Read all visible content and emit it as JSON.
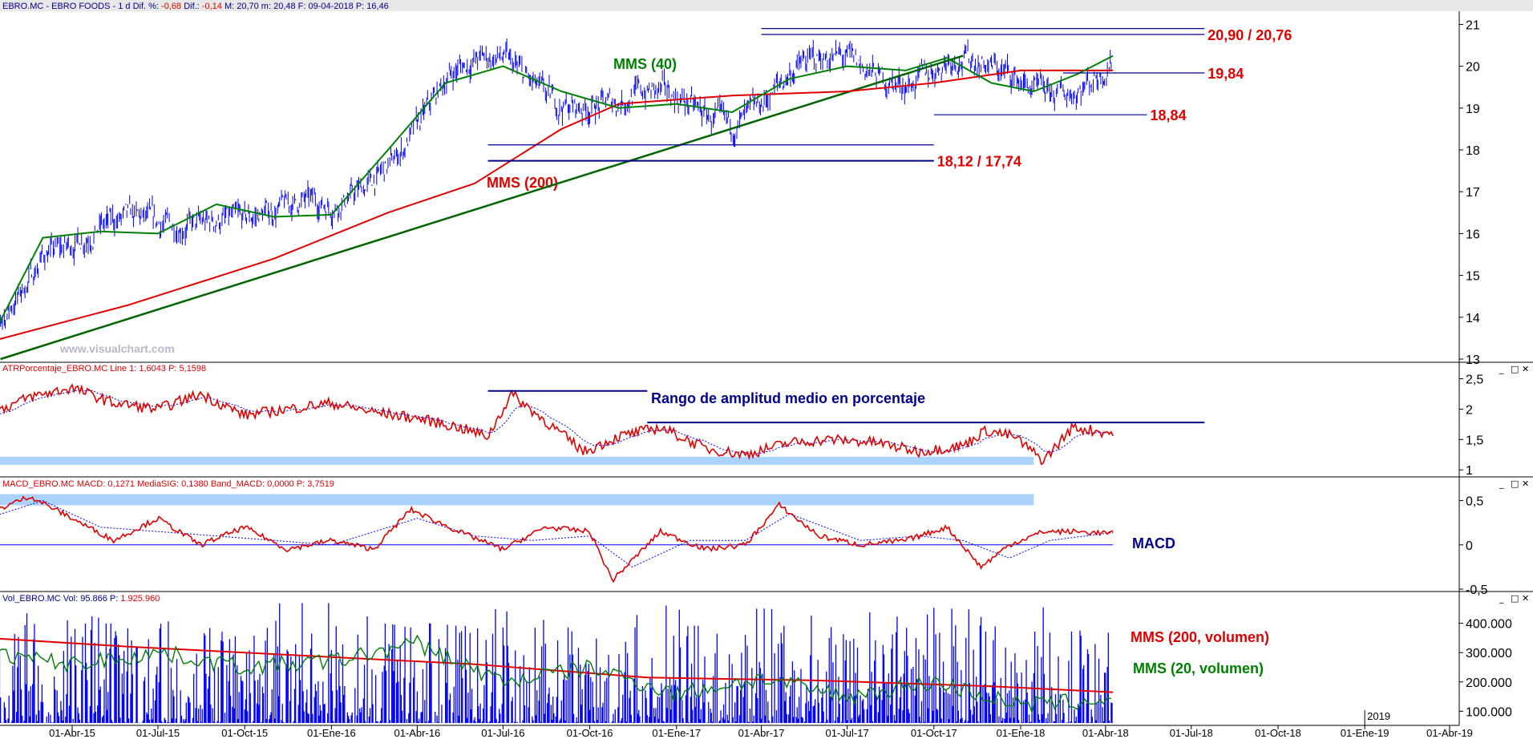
{
  "chart_data": [
    {
      "type": "line",
      "panel": "price",
      "header": {
        "prefix": "EBRO.MC - EBRO FOODS - 1 d  Dif. %:",
        "dif_pct": "-0,68",
        "dif_label": "Dif.:",
        "dif": "-0,14",
        "rest": "M: 20,70  m: 20,48  F: 09-04-2018  P: 16,46"
      },
      "watermark": "www.visualchart.com",
      "ylim": [
        13,
        21.2
      ],
      "y_ticks": [
        "21",
        "20",
        "19",
        "18",
        "17",
        "16",
        "15",
        "14",
        "13"
      ],
      "y_tick_values": [
        21,
        20,
        19,
        18,
        17,
        16,
        15,
        14,
        13
      ],
      "series": [
        {
          "name": "MMS (40)",
          "color": "#008000",
          "x": [
            "2015-01-01",
            "2015-03-01",
            "2015-05-01",
            "2015-07-01",
            "2015-09-01",
            "2015-11-01",
            "2016-01-01",
            "2016-03-01",
            "2016-05-01",
            "2016-07-01",
            "2016-09-01",
            "2016-11-01",
            "2017-01-01",
            "2017-03-01",
            "2017-05-01",
            "2017-07-01",
            "2017-09-01",
            "2017-10-15",
            "2017-12-01",
            "2018-01-15",
            "2018-03-01",
            "2018-04-09"
          ],
          "values": [
            13.3,
            15.9,
            16.05,
            16.0,
            16.7,
            16.4,
            16.45,
            18.0,
            19.6,
            20.0,
            19.4,
            19.0,
            19.1,
            18.9,
            19.7,
            20.0,
            19.9,
            20.2,
            19.6,
            19.4,
            19.8,
            20.25
          ]
        },
        {
          "name": "MMS (200)",
          "color": "#e00000",
          "x": [
            "2015-01-01",
            "2015-06-01",
            "2015-11-01",
            "2016-03-01",
            "2016-06-01",
            "2016-09-01",
            "2016-11-01",
            "2017-03-01",
            "2017-07-01",
            "2017-10-01",
            "2018-01-01",
            "2018-04-09"
          ],
          "values": [
            13.4,
            14.3,
            15.4,
            16.5,
            17.2,
            18.5,
            19.1,
            19.3,
            19.4,
            19.6,
            19.9,
            19.9
          ]
        },
        {
          "name": "",
          "role": "trendline",
          "color": "#006400",
          "x": [
            "2015-01-15",
            "2017-11-01"
          ],
          "values": [
            13.0,
            20.25
          ]
        }
      ],
      "levels": [
        {
          "label": "20,90 / 20,76",
          "values": [
            20.9,
            20.76
          ],
          "from": "2017-04-01",
          "to": "2018-07-15",
          "color": "#00008b"
        },
        {
          "label": "19,84",
          "values": [
            19.84
          ],
          "from": "2018-02-15",
          "to": "2018-07-15",
          "color": "#00008b"
        },
        {
          "label": "18,84",
          "values": [
            18.84
          ],
          "from": "2017-10-01",
          "to": "2018-05-15",
          "color": "#00008b"
        },
        {
          "label": "18,12 / 17,74",
          "values": [
            18.12,
            17.74
          ],
          "from": "2016-06-15",
          "to": "2017-10-01",
          "color": "#00008b"
        }
      ],
      "annotations": [
        {
          "text": "MMS (40)",
          "color": "#008000"
        },
        {
          "text": "MMS (200)",
          "color": "#e00000"
        }
      ]
    },
    {
      "type": "line",
      "panel": "atr",
      "header": {
        "label": "ATRPorcentaje_EBRO.MC  Line 1: 1,6043  P: 5,1598"
      },
      "title": "Rango de amplitud medio en porcentaje",
      "ylim": [
        0.95,
        2.6
      ],
      "y_ticks": [
        "2,5",
        "2",
        "1,5",
        "1"
      ],
      "y_tick_values": [
        2.5,
        2,
        1.5,
        1
      ],
      "series": [
        {
          "name": "Line 1",
          "color": "#e00000",
          "x": [
            "2015-01-01",
            "2015-02-15",
            "2015-04-01",
            "2015-05-15",
            "2015-07-01",
            "2015-08-15",
            "2015-10-01",
            "2015-11-15",
            "2016-01-01",
            "2016-02-15",
            "2016-04-01",
            "2016-05-15",
            "2016-06-15",
            "2016-07-10",
            "2016-08-15",
            "2016-09-25",
            "2016-11-01",
            "2016-12-15",
            "2017-02-01",
            "2017-03-15",
            "2017-05-01",
            "2017-06-15",
            "2017-08-01",
            "2017-09-15",
            "2017-11-01",
            "2017-11-25",
            "2017-12-25",
            "2018-01-25",
            "2018-02-25",
            "2018-04-09"
          ],
          "values": [
            1.9,
            2.2,
            2.35,
            2.1,
            2.0,
            2.25,
            1.9,
            2.0,
            2.1,
            1.95,
            1.85,
            1.7,
            1.55,
            2.25,
            1.8,
            1.3,
            1.55,
            1.7,
            1.35,
            1.25,
            1.45,
            1.5,
            1.45,
            1.3,
            1.4,
            1.65,
            1.55,
            1.15,
            1.7,
            1.6
          ]
        }
      ],
      "levels": [
        {
          "values": [
            2.3
          ],
          "from": "2016-06-15",
          "to": "2016-12-01",
          "color": "#00008b"
        },
        {
          "values": [
            1.78
          ],
          "from": "2016-12-01",
          "to": "2018-07-15",
          "color": "#00008b"
        }
      ],
      "highlight_band": {
        "from": "2015-01-01",
        "to": "2018-01-15",
        "value": 1.15,
        "color": "#aad4ff"
      }
    },
    {
      "type": "line",
      "panel": "macd",
      "header": {
        "label": "MACD_EBRO.MC  MACD: 0,1271  MediaSIG: 0,1380  Band_MACD: 0,0000  P: 3,7519"
      },
      "title": "MACD",
      "ylim": [
        -0.5,
        0.65
      ],
      "y_ticks": [
        "0,5",
        "0",
        "-0,5"
      ],
      "y_tick_values": [
        0.5,
        0,
        -0.5
      ],
      "series": [
        {
          "name": "MACD",
          "color": "#e00000",
          "x": [
            "2015-01-01",
            "2015-02-15",
            "2015-04-01",
            "2015-05-15",
            "2015-07-01",
            "2015-08-15",
            "2015-10-01",
            "2015-11-15",
            "2016-01-01",
            "2016-02-15",
            "2016-03-25",
            "2016-05-15",
            "2016-07-01",
            "2016-08-15",
            "2016-10-01",
            "2016-10-25",
            "2016-12-15",
            "2017-02-01",
            "2017-03-15",
            "2017-04-20",
            "2017-06-01",
            "2017-07-15",
            "2017-09-01",
            "2017-10-15",
            "2017-11-20",
            "2017-12-20",
            "2018-01-25",
            "2018-02-25",
            "2018-04-09"
          ],
          "values": [
            0.35,
            0.55,
            0.3,
            0.05,
            0.3,
            0.0,
            0.2,
            -0.05,
            0.05,
            -0.05,
            0.4,
            0.15,
            -0.05,
            0.2,
            0.15,
            -0.4,
            0.15,
            -0.05,
            0.0,
            0.45,
            0.1,
            0.0,
            0.05,
            0.2,
            -0.25,
            0.0,
            0.15,
            0.15,
            0.13
          ]
        },
        {
          "name": "MediaSIG",
          "color": "#0000ff",
          "x": [
            "2015-01-01",
            "2015-03-01",
            "2015-05-01",
            "2015-07-01",
            "2015-09-01",
            "2015-11-01",
            "2016-01-01",
            "2016-04-01",
            "2016-06-01",
            "2016-08-01",
            "2016-10-01",
            "2016-11-15",
            "2017-01-15",
            "2017-03-15",
            "2017-05-01",
            "2017-07-15",
            "2017-09-15",
            "2017-11-01",
            "2017-12-20",
            "2018-02-01",
            "2018-04-09"
          ],
          "values": [
            0.3,
            0.5,
            0.2,
            0.15,
            0.1,
            0.05,
            0.0,
            0.3,
            0.1,
            0.05,
            0.1,
            -0.25,
            0.05,
            0.05,
            0.35,
            0.05,
            0.1,
            0.05,
            -0.15,
            0.05,
            0.14
          ]
        }
      ],
      "baseline": 0,
      "highlight_band": {
        "from": "2015-01-01",
        "to": "2018-01-15",
        "value": 0.51,
        "color": "#aad4ff"
      }
    },
    {
      "type": "bar",
      "panel": "volume",
      "header": {
        "prefix": "Vol_EBRO.MC  Vol: 95.866  P:",
        "p_value": "1.925.960"
      },
      "ylim": [
        60000,
        470000
      ],
      "y_ticks": [
        "400.000",
        "300.000",
        "200.000",
        "100.000"
      ],
      "y_tick_values": [
        400000,
        300000,
        200000,
        100000
      ],
      "series": [
        {
          "name": "MMS (200, volumen)",
          "color": "#e00000",
          "x": [
            "2015-01-01",
            "2015-06-01",
            "2015-12-01",
            "2016-06-01",
            "2016-12-01",
            "2017-06-01",
            "2017-12-01",
            "2018-04-09"
          ],
          "values": [
            350000,
            320000,
            290000,
            260000,
            215000,
            205000,
            185000,
            165000
          ]
        },
        {
          "name": "MMS (20, volumen)",
          "color": "#008000",
          "x": [
            "2015-01-01",
            "2015-04-01",
            "2015-07-01",
            "2015-10-01",
            "2016-01-01",
            "2016-04-01",
            "2016-07-01",
            "2016-10-01",
            "2017-01-01",
            "2017-04-01",
            "2017-07-01",
            "2017-10-01",
            "2018-01-01",
            "2018-04-09"
          ],
          "values": [
            300000,
            260000,
            300000,
            250000,
            270000,
            330000,
            200000,
            250000,
            160000,
            210000,
            150000,
            200000,
            120000,
            140000
          ]
        }
      ],
      "bars_color": "#0000ff"
    }
  ],
  "x_axis": {
    "labels": [
      "e-15",
      "01-Abr-15",
      "01-Jul-15",
      "01-Oct-15",
      "01-Ene-16",
      "01-Abr-16",
      "01-Jul-16",
      "01-Oct-16",
      "01-Ene-17",
      "01-Abr-17",
      "01-Jul-17",
      "01-Oct-17",
      "01-Ene-18",
      "01-Abr-18",
      "01-Jul-18",
      "01-Oct-18",
      "01-Ene-19",
      "01-Abr-19"
    ],
    "dates": [
      "2015-01-01",
      "2015-04-01",
      "2015-07-01",
      "2015-10-01",
      "2016-01-01",
      "2016-04-01",
      "2016-07-01",
      "2016-10-01",
      "2017-01-01",
      "2017-04-01",
      "2017-07-01",
      "2017-10-01",
      "2018-01-01",
      "2018-04-01",
      "2018-07-01",
      "2018-10-01",
      "2019-01-01",
      "2019-04-01"
    ],
    "year_marker": "2019",
    "year_marker_date": "2019-01-01"
  },
  "window_buttons": {
    "minimize": "_",
    "restore": "□",
    "close": "✕"
  },
  "colors": {
    "red": "#e00000",
    "green": "#008000",
    "navy": "#00008b",
    "blue": "#0000ff",
    "band": "#aad4ff",
    "panel_bg": "#ffffff"
  }
}
